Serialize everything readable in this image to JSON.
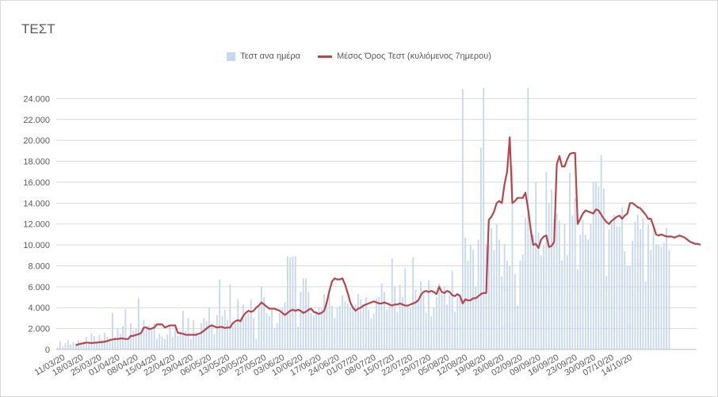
{
  "chart_data": {
    "type": "bar+line",
    "title": "ΤΕΣΤ",
    "legend": [
      "Τεστ ανα ημέρα",
      "Μέσος Όρος Τεστ (κυλιόμενος 7ημερου)"
    ],
    "legend_position": "top",
    "grid": true,
    "ylim": [
      0,
      26000
    ],
    "yticks": [
      0,
      2000,
      4000,
      6000,
      8000,
      10000,
      12000,
      14000,
      16000,
      18000,
      20000,
      22000,
      24000
    ],
    "ytick_labels": [
      "0",
      "2.000",
      "4.000",
      "6.000",
      "8.000",
      "10.000",
      "12.000",
      "14.000",
      "16.000",
      "18.000",
      "20.000",
      "22.000",
      "24.000"
    ],
    "xtick_labels": [
      "11/03/20",
      "18/03/20",
      "25/03/20",
      "01/04/20",
      "08/04/20",
      "15/04/20",
      "22/04/20",
      "29/04/20",
      "06/05/20",
      "13/05/20",
      "20/05/20",
      "27/05/20",
      "03/06/20",
      "10/06/20",
      "17/06/20",
      "24/06/20",
      "01/07/20",
      "08/07/20",
      "15/07/20",
      "22/07/20",
      "29/07/20",
      "05/08/20",
      "12/08/20",
      "19/08/20",
      "26/08/20",
      "02/09/20",
      "09/09/20",
      "16/09/20",
      "23/09/20",
      "30/09/20",
      "07/10/20",
      "14/10/20"
    ],
    "colors": {
      "bars": "#c6d7f0",
      "line": "#b5474b",
      "grid": "#d9d9d9"
    },
    "series": [
      {
        "name": "Τεστ ανα ημέρα",
        "type": "bar",
        "values": [
          200,
          800,
          300,
          600,
          900,
          500,
          700,
          600,
          900,
          400,
          800,
          1200,
          700,
          1500,
          1300,
          800,
          1400,
          900,
          1600,
          1200,
          800,
          3500,
          1200,
          2000,
          1500,
          2200,
          3900,
          1000,
          2500,
          1800,
          2000,
          4900,
          1500,
          2800,
          2100,
          2300,
          1900,
          2500,
          1000,
          1500,
          1200,
          1000,
          1400,
          2300,
          1200,
          2000,
          1300,
          1800,
          3700,
          1800,
          3000,
          1000,
          2800,
          1700,
          1300,
          2500,
          3000,
          2700,
          4000,
          2500,
          1500,
          3300,
          6700,
          3200,
          3800,
          2800,
          6200,
          2200,
          2500,
          4800,
          3000,
          4300,
          3200,
          3500,
          4800,
          3000,
          1000,
          4200,
          6000,
          5000,
          3500,
          3200,
          4000,
          2000,
          2500,
          3500,
          4000,
          4500,
          8900,
          8800,
          8900,
          8900,
          2200,
          5500,
          6800,
          6800,
          5500,
          3500,
          3200,
          3700,
          4000,
          3900,
          5300,
          4500,
          5100,
          4200,
          3000,
          4000,
          4200,
          5200,
          4600,
          4400,
          4000,
          4100,
          4300,
          5300,
          4800,
          4300,
          5000,
          3800,
          3000,
          3400,
          4900,
          5000,
          6300,
          5500,
          3800,
          4500,
          8700,
          6000,
          3600,
          6200,
          5000,
          7800,
          4200,
          4000,
          8800,
          5700,
          4600,
          6500,
          5200,
          3500,
          6600,
          3200,
          4000,
          5000,
          6300,
          5300,
          6000,
          4300,
          5200,
          7500,
          3600,
          5000,
          5300,
          24900,
          10700,
          8500,
          10000,
          9500,
          6000,
          10500,
          19300,
          25000,
          10000,
          10000,
          11600,
          9500,
          12000,
          10500,
          7000,
          10100,
          8500,
          8000,
          17600,
          7200,
          4200,
          8500,
          9100,
          12600,
          25000,
          12000,
          11000,
          16000,
          11200,
          9000,
          10000,
          17000,
          14000,
          15300,
          12500,
          13000,
          12300,
          8500,
          12000,
          9000,
          16900,
          12800,
          14500,
          7700,
          11000,
          12400,
          11000,
          10500,
          12000,
          16000,
          16000,
          15600,
          18600,
          15400,
          7000,
          11500,
          12000,
          12900,
          11800,
          11800,
          13600,
          9400,
          8000,
          8000,
          10400,
          12200,
          12900,
          11500,
          12600,
          6500,
          12000,
          9500,
          11800,
          10000,
          10000,
          9800,
          10200,
          11600,
          9500
        ]
      },
      {
        "name": "Μέσος Όρος Τεστ (κυλιόμενος 7ημερου)",
        "type": "line",
        "start_index": 7,
        "values": [
          400,
          500,
          550,
          600,
          650,
          650,
          600,
          650,
          650,
          700,
          700,
          750,
          800,
          900,
          950,
          1000,
          1000,
          1050,
          1050,
          1000,
          1000,
          1300,
          1300,
          1400,
          1450,
          1600,
          2100,
          2100,
          1950,
          2000,
          2100,
          2400,
          2400,
          2400,
          2100,
          2200,
          2300,
          2300,
          2300,
          1600,
          1550,
          1500,
          1400,
          1400,
          1400,
          1400,
          1400,
          1500,
          1600,
          1800,
          2000,
          2200,
          2300,
          2200,
          2100,
          2150,
          2150,
          2050,
          2100,
          2100,
          2500,
          2700,
          2800,
          2700,
          3200,
          3500,
          3700,
          3600,
          3700,
          4000,
          4200,
          4500,
          4300,
          4100,
          3900,
          3900,
          3900,
          3800,
          3700,
          3500,
          3300,
          3500,
          3700,
          3800,
          3700,
          3800,
          3700,
          3500,
          3600,
          3800,
          3900,
          3600,
          3500,
          3400,
          3500,
          3700,
          4500,
          5600,
          6500,
          6800,
          6700,
          6700,
          6800,
          6200,
          5400,
          4500,
          4000,
          3700,
          3900,
          4000,
          4200,
          4300,
          4400,
          4500,
          4600,
          4500,
          4400,
          4400,
          4500,
          4400,
          4300,
          4200,
          4300,
          4300,
          4400,
          4300,
          4200,
          4200,
          4300,
          4400,
          4500,
          4700,
          5200,
          5500,
          5600,
          5500,
          5600,
          5500,
          5300,
          6000,
          5500,
          5400,
          5600,
          5500,
          5200,
          5100,
          5300,
          5100,
          4400,
          4800,
          4700,
          4700,
          4900,
          4900,
          5100,
          5300,
          5400,
          5400,
          12400,
          12700,
          13200,
          14000,
          14200,
          14000,
          15800,
          17000,
          20300,
          14000,
          14200,
          14500,
          14500,
          14500,
          15000,
          13500,
          11500,
          10000,
          10100,
          9700,
          10500,
          10800,
          10900,
          9800,
          9900,
          10300,
          17700,
          18500,
          17500,
          17500,
          18200,
          18700,
          18800,
          18800,
          12000,
          12500,
          13000,
          13300,
          13200,
          13100,
          13000,
          13400,
          13300,
          12900,
          12500,
          12200,
          12000,
          12300,
          12500,
          12700,
          12800,
          12500,
          12800,
          13000,
          14000,
          14000,
          13800,
          13600,
          13500,
          13200,
          12900,
          12500,
          12500,
          11800,
          11000,
          10900,
          11000,
          10900,
          10800,
          10800,
          10800,
          10700,
          10800,
          10900,
          10800,
          10700,
          10500,
          10300,
          10200,
          10100,
          10100,
          10000
        ]
      }
    ]
  }
}
